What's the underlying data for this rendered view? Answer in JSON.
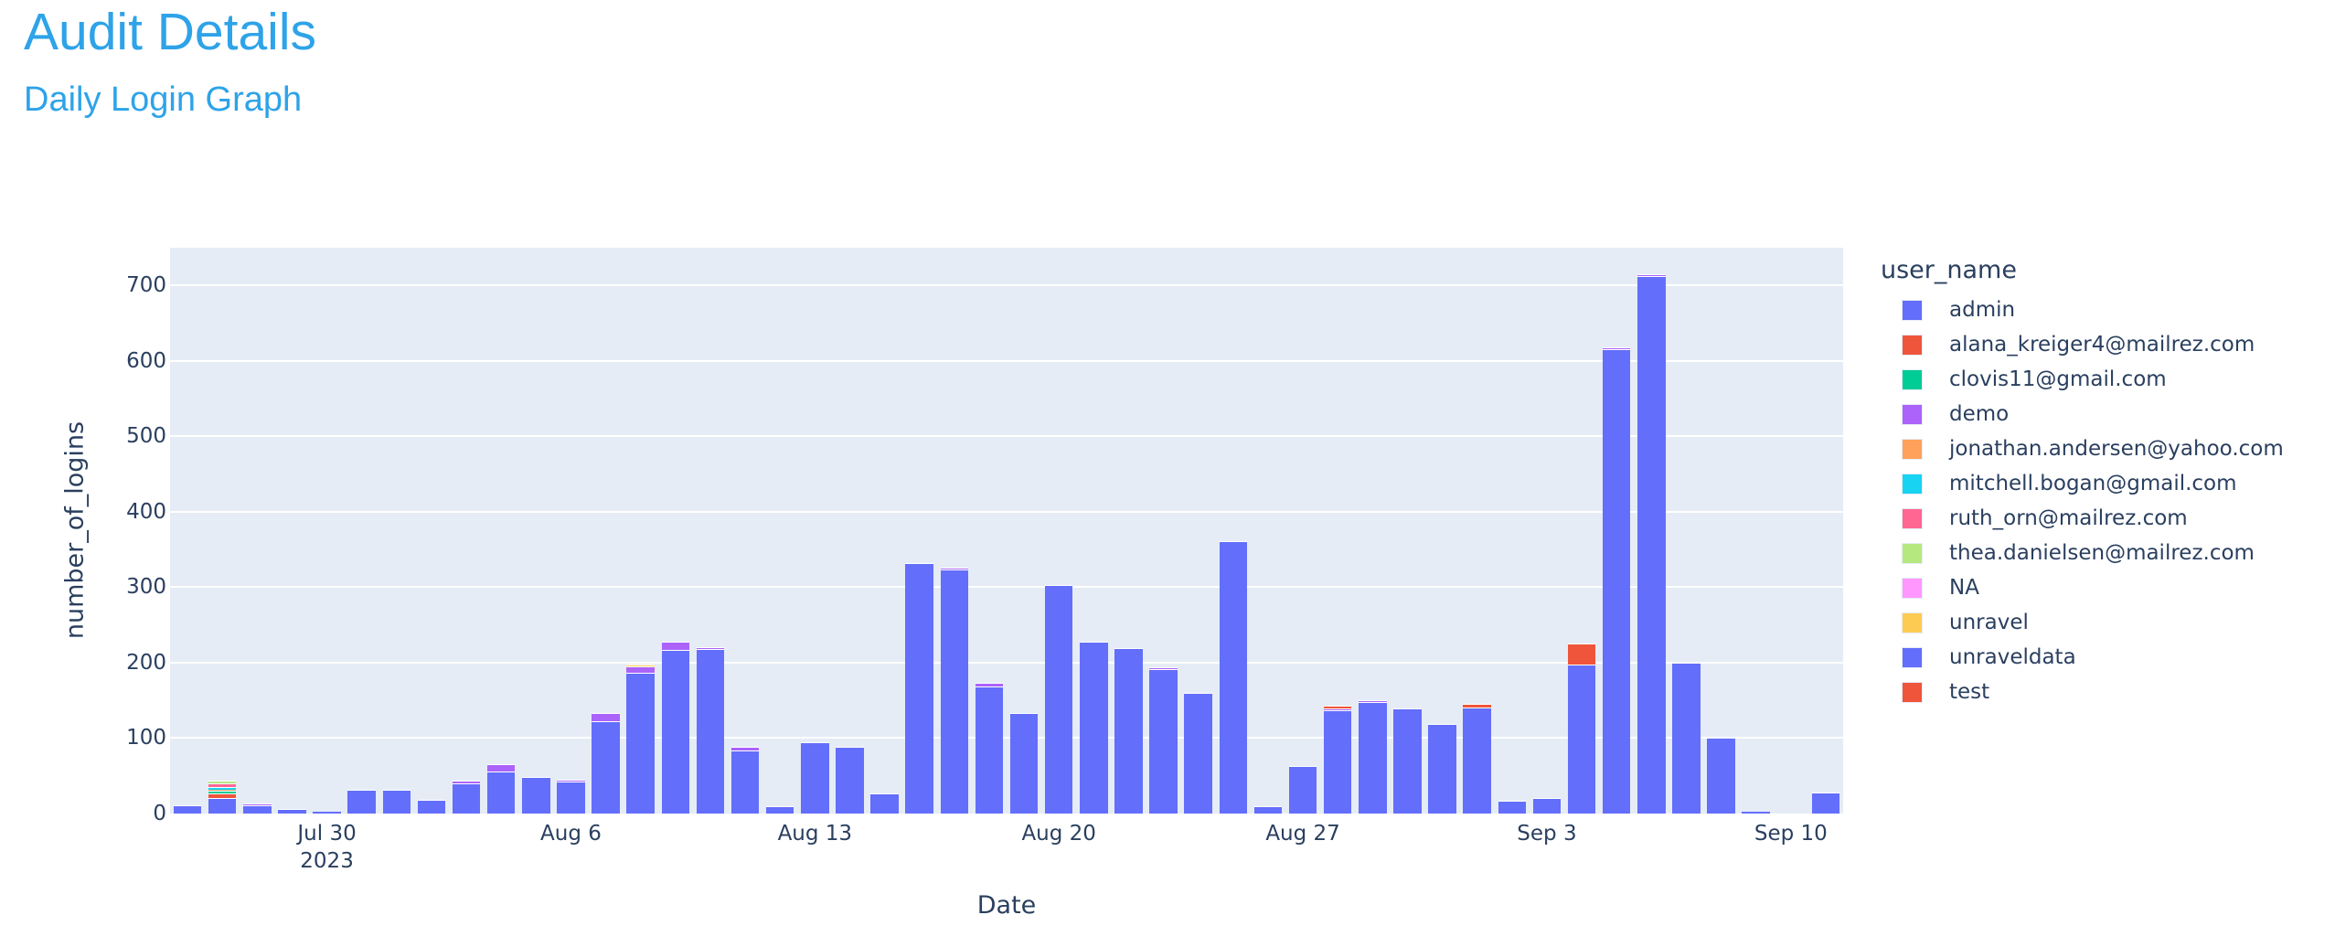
{
  "page": {
    "title": "Audit Details",
    "subtitle": "Daily Login Graph"
  },
  "chart_data": {
    "type": "bar",
    "barmode": "stack",
    "title": "Daily Login Graph",
    "xlabel": "Date",
    "ylabel": "number_of_logins",
    "ylim": [
      0,
      750
    ],
    "grid": true,
    "legend_position": "right",
    "legend_title": "user_name",
    "yticks": [
      0,
      100,
      200,
      300,
      400,
      500,
      600,
      700
    ],
    "xticks": [
      {
        "index": 4,
        "label": "Jul 30",
        "sublabel": "2023"
      },
      {
        "index": 11,
        "label": "Aug 6"
      },
      {
        "index": 18,
        "label": "Aug 13"
      },
      {
        "index": 25,
        "label": "Aug 20"
      },
      {
        "index": 32,
        "label": "Aug 27"
      },
      {
        "index": 39,
        "label": "Sep 3"
      },
      {
        "index": 46,
        "label": "Sep 10"
      }
    ],
    "categories": [
      "2023-07-26",
      "2023-07-27",
      "2023-07-28",
      "2023-07-29",
      "2023-07-30",
      "2023-07-31",
      "2023-08-01",
      "2023-08-02",
      "2023-08-03",
      "2023-08-04",
      "2023-08-05",
      "2023-08-06",
      "2023-08-07",
      "2023-08-08",
      "2023-08-09",
      "2023-08-10",
      "2023-08-11",
      "2023-08-12",
      "2023-08-13",
      "2023-08-14",
      "2023-08-15",
      "2023-08-16",
      "2023-08-17",
      "2023-08-18",
      "2023-08-19",
      "2023-08-20",
      "2023-08-21",
      "2023-08-22",
      "2023-08-23",
      "2023-08-24",
      "2023-08-25",
      "2023-08-26",
      "2023-08-27",
      "2023-08-28",
      "2023-08-29",
      "2023-08-30",
      "2023-08-31",
      "2023-09-01",
      "2023-09-02",
      "2023-09-03",
      "2023-09-04",
      "2023-09-05",
      "2023-09-06",
      "2023-09-07",
      "2023-09-08",
      "2023-09-09",
      "2023-09-10",
      "2023-09-11"
    ],
    "series": [
      {
        "name": "admin",
        "color": "#636efa",
        "values": [
          11,
          21,
          11,
          6,
          1,
          32,
          31,
          18,
          40,
          56,
          48,
          42,
          122,
          187,
          217,
          218,
          84,
          10,
          94,
          88,
          27,
          332,
          324,
          168,
          133,
          303,
          228,
          219,
          191,
          160,
          361,
          10,
          63,
          137,
          148,
          139,
          119,
          141,
          17,
          21,
          197,
          615,
          713,
          200,
          100,
          3,
          0,
          28
        ]
      },
      {
        "name": "alana_kreiger4@mailrez.com",
        "color": "#EF553B",
        "values": [
          0,
          6,
          0,
          0,
          0,
          0,
          0,
          0,
          0,
          0,
          0,
          0,
          0,
          0,
          0,
          0,
          0,
          0,
          0,
          0,
          0,
          0,
          0,
          0,
          0,
          0,
          0,
          0,
          0,
          0,
          0,
          0,
          0,
          0,
          0,
          0,
          0,
          0,
          0,
          0,
          0,
          0,
          0,
          0,
          0,
          0,
          0,
          0
        ]
      },
      {
        "name": "clovis11@gmail.com",
        "color": "#00cc96",
        "values": [
          0,
          3,
          0,
          0,
          0,
          0,
          0,
          0,
          0,
          0,
          0,
          0,
          0,
          0,
          0,
          0,
          0,
          0,
          0,
          0,
          0,
          0,
          0,
          0,
          0,
          0,
          0,
          0,
          0,
          0,
          0,
          0,
          0,
          0,
          0,
          0,
          0,
          0,
          0,
          0,
          0,
          0,
          0,
          0,
          0,
          0,
          0,
          0
        ]
      },
      {
        "name": "demo",
        "color": "#ab63fa",
        "values": [
          0,
          0,
          2,
          0,
          0,
          0,
          0,
          0,
          4,
          10,
          0,
          2,
          11,
          8,
          11,
          3,
          5,
          0,
          0,
          0,
          0,
          0,
          2,
          5,
          0,
          0,
          0,
          0,
          3,
          0,
          0,
          0,
          0,
          2,
          2,
          0,
          0,
          0,
          0,
          0,
          0,
          3,
          2,
          0,
          0,
          0,
          0,
          0
        ]
      },
      {
        "name": "jonathan.andersen@yahoo.com",
        "color": "#FFA15A",
        "values": [
          0,
          2,
          0,
          0,
          0,
          0,
          0,
          0,
          0,
          0,
          0,
          0,
          0,
          0,
          0,
          0,
          0,
          0,
          0,
          0,
          0,
          0,
          0,
          0,
          0,
          0,
          0,
          0,
          0,
          0,
          0,
          0,
          0,
          0,
          0,
          0,
          0,
          0,
          0,
          0,
          0,
          0,
          0,
          0,
          0,
          0,
          0,
          0
        ]
      },
      {
        "name": "mitchell.bogan@gmail.com",
        "color": "#19d3f3",
        "values": [
          0,
          3,
          0,
          0,
          0,
          0,
          0,
          0,
          0,
          0,
          0,
          0,
          0,
          0,
          0,
          0,
          0,
          0,
          0,
          0,
          0,
          0,
          0,
          0,
          0,
          0,
          0,
          0,
          0,
          0,
          0,
          0,
          0,
          0,
          0,
          0,
          0,
          0,
          0,
          0,
          0,
          0,
          0,
          0,
          0,
          0,
          0,
          0
        ]
      },
      {
        "name": "ruth_orn@mailrez.com",
        "color": "#FF6692",
        "values": [
          0,
          5,
          0,
          0,
          0,
          0,
          0,
          0,
          0,
          0,
          0,
          0,
          0,
          0,
          0,
          0,
          0,
          0,
          0,
          0,
          0,
          0,
          0,
          0,
          0,
          0,
          0,
          0,
          0,
          0,
          0,
          0,
          0,
          0,
          0,
          0,
          0,
          0,
          0,
          0,
          0,
          0,
          0,
          0,
          0,
          0,
          0,
          0
        ]
      },
      {
        "name": "thea.danielsen@mailrez.com",
        "color": "#B6E880",
        "values": [
          0,
          4,
          0,
          0,
          0,
          0,
          0,
          0,
          0,
          0,
          0,
          0,
          0,
          0,
          0,
          0,
          0,
          0,
          0,
          0,
          0,
          0,
          0,
          0,
          0,
          0,
          0,
          0,
          0,
          0,
          0,
          0,
          0,
          0,
          0,
          0,
          0,
          0,
          0,
          0,
          0,
          0,
          0,
          0,
          0,
          0,
          0,
          0
        ]
      },
      {
        "name": "NA",
        "color": "#FF97FF",
        "values": [
          0,
          0,
          0,
          0,
          0,
          0,
          0,
          0,
          0,
          0,
          0,
          0,
          0,
          0,
          0,
          0,
          0,
          0,
          0,
          0,
          0,
          0,
          0,
          0,
          0,
          0,
          0,
          0,
          0,
          0,
          0,
          0,
          0,
          0,
          0,
          0,
          0,
          0,
          0,
          0,
          0,
          0,
          0,
          0,
          0,
          0,
          0,
          0
        ]
      },
      {
        "name": "unravel",
        "color": "#FECB52",
        "values": [
          0,
          0,
          0,
          0,
          0,
          0,
          0,
          0,
          0,
          0,
          0,
          0,
          0,
          2,
          0,
          0,
          0,
          0,
          0,
          0,
          0,
          0,
          0,
          0,
          0,
          0,
          0,
          0,
          0,
          0,
          0,
          0,
          0,
          0,
          0,
          0,
          0,
          0,
          0,
          0,
          0,
          0,
          0,
          0,
          0,
          0,
          0,
          0
        ]
      },
      {
        "name": "unraveldata",
        "color": "#636efa",
        "values": [
          0,
          0,
          0,
          0,
          0,
          0,
          0,
          0,
          0,
          0,
          0,
          0,
          0,
          0,
          0,
          0,
          0,
          0,
          0,
          0,
          0,
          0,
          0,
          0,
          0,
          0,
          0,
          0,
          0,
          0,
          0,
          0,
          0,
          0,
          0,
          0,
          0,
          0,
          0,
          0,
          0,
          0,
          0,
          0,
          0,
          0,
          0,
          0
        ]
      },
      {
        "name": "test",
        "color": "#EF553B",
        "values": [
          0,
          0,
          0,
          0,
          0,
          0,
          0,
          0,
          0,
          0,
          0,
          0,
          0,
          0,
          0,
          0,
          0,
          0,
          0,
          0,
          0,
          0,
          0,
          0,
          0,
          0,
          0,
          0,
          0,
          0,
          0,
          0,
          0,
          4,
          0,
          0,
          0,
          4,
          0,
          0,
          28,
          0,
          0,
          0,
          0,
          0,
          0,
          0
        ]
      }
    ]
  }
}
